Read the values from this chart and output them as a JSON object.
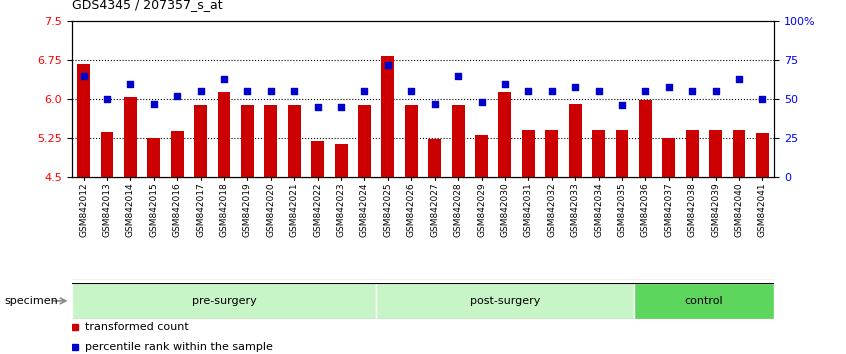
{
  "title": "GDS4345 / 207357_s_at",
  "categories": [
    "GSM842012",
    "GSM842013",
    "GSM842014",
    "GSM842015",
    "GSM842016",
    "GSM842017",
    "GSM842018",
    "GSM842019",
    "GSM842020",
    "GSM842021",
    "GSM842022",
    "GSM842023",
    "GSM842024",
    "GSM842025",
    "GSM842026",
    "GSM842027",
    "GSM842028",
    "GSM842029",
    "GSM842030",
    "GSM842031",
    "GSM842032",
    "GSM842033",
    "GSM842034",
    "GSM842035",
    "GSM842036",
    "GSM842037",
    "GSM842038",
    "GSM842039",
    "GSM842040",
    "GSM842041"
  ],
  "bar_values": [
    6.68,
    5.36,
    6.04,
    5.25,
    5.38,
    5.88,
    6.13,
    5.88,
    5.88,
    5.88,
    5.2,
    5.13,
    5.88,
    6.83,
    5.88,
    5.24,
    5.88,
    5.31,
    6.13,
    5.4,
    5.4,
    5.9,
    5.4,
    5.4,
    5.99,
    5.25,
    5.4,
    5.4,
    5.4,
    5.35
  ],
  "percentile_values": [
    65,
    50,
    60,
    47,
    52,
    55,
    63,
    55,
    55,
    55,
    45,
    45,
    55,
    72,
    55,
    47,
    65,
    48,
    60,
    55,
    55,
    58,
    55,
    46,
    55,
    58,
    55,
    55,
    63,
    50
  ],
  "groups": [
    {
      "label": "pre-surgery",
      "start": 0,
      "end": 13
    },
    {
      "label": "post-surgery",
      "start": 13,
      "end": 24
    },
    {
      "label": "control",
      "start": 24,
      "end": 30
    }
  ],
  "group_colors": {
    "pre-surgery": "#c8f5c8",
    "post-surgery": "#c8f5c8",
    "control": "#5cd65c"
  },
  "ylim_left": [
    4.5,
    7.5
  ],
  "ylim_right": [
    0,
    100
  ],
  "yticks_left": [
    4.5,
    5.25,
    6.0,
    6.75,
    7.5
  ],
  "yticks_right": [
    0,
    25,
    50,
    75,
    100
  ],
  "ytick_labels_right": [
    "0",
    "25",
    "50",
    "75",
    "100%"
  ],
  "hlines": [
    5.25,
    6.0,
    6.75
  ],
  "bar_color": "#cc0000",
  "dot_color": "#0000cc",
  "bar_bottom": 4.5,
  "legend_items": [
    {
      "label": "transformed count",
      "color": "#cc0000"
    },
    {
      "label": "percentile rank within the sample",
      "color": "#0000cc"
    }
  ]
}
